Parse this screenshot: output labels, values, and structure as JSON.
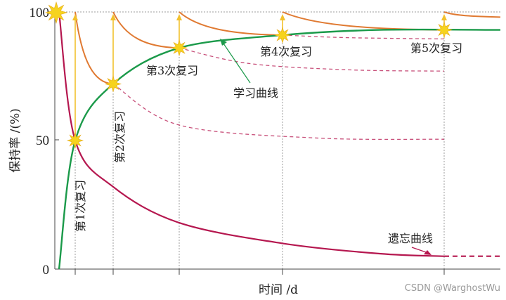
{
  "chart_data": {
    "type": "line",
    "xlabel": "时间 /d",
    "ylabel": "保持率 /(%)",
    "yticks": [
      "0",
      "50",
      "100"
    ],
    "ylim": [
      0,
      100
    ],
    "colors": {
      "forgetting": "#b5174f",
      "learning": "#1b9a4a",
      "review": "#e07a32",
      "arrow": "#f2c12e",
      "star": "#f6d31e",
      "grid": "#9c9c9c"
    },
    "series": [
      {
        "name": "学习曲线",
        "role": "learning",
        "points": [
          [
            0,
            0
          ],
          [
            1,
            50
          ],
          [
            2,
            72
          ],
          [
            4,
            86
          ],
          [
            7,
            91
          ],
          [
            10,
            93
          ],
          [
            14.2,
            93
          ]
        ]
      },
      {
        "name": "遗忘曲线",
        "role": "forgetting",
        "points": [
          [
            0,
            100
          ],
          [
            1,
            50
          ],
          [
            2,
            32
          ],
          [
            4,
            18
          ],
          [
            7,
            10
          ],
          [
            10,
            6
          ],
          [
            12,
            5
          ]
        ],
        "dashed_extension": [
          [
            12,
            5
          ],
          [
            14.2,
            5
          ]
        ]
      }
    ],
    "review_curves": [
      {
        "from": [
          1,
          100
        ],
        "to": [
          2,
          72
        ],
        "dashed_to": [
          [
            2,
            72
          ],
          [
            4,
            56
          ],
          [
            8,
            51
          ],
          [
            12,
            50.5
          ]
        ]
      },
      {
        "from": [
          2,
          100
        ],
        "to": [
          4,
          86
        ],
        "dashed_to": [
          [
            4,
            86
          ],
          [
            6,
            80
          ],
          [
            9,
            77.5
          ],
          [
            12,
            77
          ]
        ]
      },
      {
        "from": [
          4,
          100
        ],
        "to": [
          7,
          91
        ],
        "dashed_to": [
          [
            7,
            91
          ],
          [
            9,
            90
          ],
          [
            12,
            89.5
          ]
        ]
      },
      {
        "from": [
          7,
          100
        ],
        "to": [
          12,
          93
        ]
      },
      {
        "from": [
          12,
          100
        ],
        "to": [
          14.2,
          98
        ]
      }
    ],
    "reviews": [
      {
        "label": "第1次复习",
        "x": 1,
        "before": 50,
        "after": 100
      },
      {
        "label": "第2次复习",
        "x": 2,
        "before": 72,
        "after": 100
      },
      {
        "label": "第3次复习",
        "x": 4,
        "before": 86,
        "after": 100
      },
      {
        "label": "第4次复习",
        "x": 7,
        "before": 91,
        "after": 100
      },
      {
        "label": "第5次复习",
        "x": 12,
        "before": 93,
        "after": 100
      }
    ],
    "annotations": {
      "learning_curve": "学习曲线",
      "forgetting_curve": "遗忘曲线"
    }
  },
  "watermark": "CSDN @WarghostWu"
}
